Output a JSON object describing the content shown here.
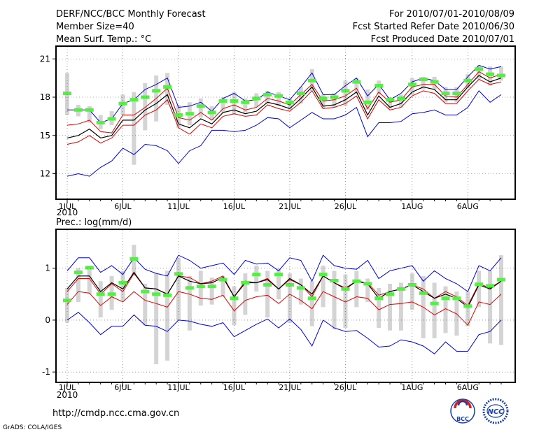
{
  "header": {
    "title": "DERF/NCC/BCC Monthly Forecast",
    "member_size": "Member Size=40",
    "variable_top": "Mean Surf. Temp.: °C",
    "fcst_period": "For 2010/07/01-2010/08/09",
    "fcst_started": "Fcst Started Refer Date 2010/06/30",
    "fcst_produced": "Fcst Produced Date 2010/07/01"
  },
  "footer": {
    "url": "http://cmdp.ncc.cma.gov.cn",
    "grads_credit": "GrADS: COLA/IGES",
    "logo_bcc_text": "BCC",
    "logo_ncc_text": "NCC"
  },
  "colors": {
    "ensemble_range": "#0000dd",
    "quartile_bounds": "#dd0000",
    "ensemble_mean": "#000000",
    "spread_bar": "#d4d4d4",
    "median_marker": "#55ee44",
    "frame": "#000000"
  },
  "chart_data": [
    {
      "type": "line",
      "title": "Mean Surf. Temp.: °C",
      "n_days": 40,
      "ylim": [
        10,
        22
      ],
      "yticks": [
        12,
        15,
        18,
        21
      ],
      "xtick_days": [
        1,
        6,
        11,
        16,
        21,
        26,
        32,
        37
      ],
      "xtick_labels": [
        "1JUL",
        "6JUL",
        "11JUL",
        "16JUL",
        "21JUL",
        "26JUL",
        "1AUG",
        "6AUG"
      ],
      "year_label": "2010",
      "series": [
        {
          "name": "max",
          "values": [
            17.0,
            17.0,
            17.0,
            16.0,
            16.3,
            17.5,
            17.8,
            18.6,
            19.0,
            19.5,
            17.2,
            17.3,
            17.6,
            16.9,
            17.9,
            18.3,
            17.7,
            17.8,
            18.4,
            18.1,
            17.8,
            18.8,
            19.9,
            18.2,
            18.2,
            18.9,
            19.5,
            18.1,
            19.0,
            17.8,
            18.3,
            19.2,
            19.5,
            19.3,
            18.6,
            18.6,
            19.6,
            20.5,
            20.2,
            20.4
          ]
        },
        {
          "name": "upper",
          "values": [
            15.8,
            15.9,
            16.2,
            15.3,
            15.2,
            16.6,
            16.6,
            17.2,
            17.9,
            18.7,
            16.4,
            16.2,
            16.8,
            16.2,
            17.1,
            17.4,
            17.0,
            17.2,
            17.9,
            17.7,
            17.4,
            18.2,
            19.0,
            17.7,
            17.8,
            18.1,
            18.7,
            17.1,
            18.4,
            17.6,
            17.8,
            18.8,
            19.0,
            19.0,
            18.1,
            18.0,
            19.0,
            20.0,
            19.5,
            19.8
          ]
        },
        {
          "name": "mean",
          "values": [
            14.8,
            15.0,
            15.5,
            14.8,
            15.0,
            16.2,
            16.2,
            17.0,
            17.5,
            18.2,
            15.9,
            15.6,
            16.3,
            15.9,
            16.8,
            17.0,
            16.7,
            16.9,
            17.6,
            17.4,
            17.1,
            17.9,
            18.8,
            17.3,
            17.4,
            17.8,
            18.4,
            16.6,
            18.1,
            17.2,
            17.5,
            18.4,
            18.8,
            18.6,
            17.8,
            17.8,
            18.8,
            19.7,
            19.2,
            19.5
          ]
        },
        {
          "name": "lower",
          "values": [
            14.3,
            14.5,
            15.0,
            14.4,
            14.8,
            15.8,
            15.8,
            16.6,
            17.0,
            17.8,
            15.6,
            15.1,
            15.9,
            15.6,
            16.5,
            16.7,
            16.5,
            16.6,
            17.4,
            17.1,
            16.9,
            17.6,
            18.5,
            17.1,
            17.2,
            17.5,
            18.1,
            16.3,
            17.8,
            17.0,
            17.2,
            18.1,
            18.5,
            18.3,
            17.5,
            17.5,
            18.5,
            19.4,
            19.0,
            19.2
          ]
        },
        {
          "name": "min",
          "values": [
            11.8,
            12.0,
            11.8,
            12.5,
            13.0,
            14.0,
            13.5,
            14.3,
            14.2,
            13.8,
            12.8,
            13.8,
            14.2,
            15.4,
            15.4,
            15.3,
            15.4,
            15.8,
            16.4,
            16.3,
            15.6,
            16.2,
            16.8,
            16.3,
            16.3,
            16.6,
            17.2,
            14.9,
            16.0,
            16.0,
            16.1,
            16.7,
            16.8,
            17.0,
            16.6,
            16.6,
            17.2,
            18.5,
            17.6,
            18.2
          ]
        },
        {
          "name": "median",
          "values": [
            18.3,
            17.0,
            17.0,
            16.0,
            16.3,
            17.5,
            17.8,
            18.0,
            18.5,
            18.8,
            16.6,
            16.7,
            17.3,
            16.8,
            17.7,
            17.7,
            17.6,
            17.9,
            18.2,
            18.1,
            17.6,
            18.3,
            19.3,
            17.9,
            18.0,
            18.5,
            19.2,
            17.6,
            18.9,
            17.8,
            17.9,
            19.0,
            19.4,
            19.2,
            18.3,
            18.3,
            19.3,
            20.2,
            19.8,
            19.7
          ]
        },
        {
          "name": "spread_top",
          "values": [
            19.9,
            17.4,
            17.3,
            16.6,
            16.9,
            18.2,
            18.4,
            19.1,
            19.7,
            19.9,
            17.4,
            17.6,
            17.9,
            17.3,
            18.0,
            18.4,
            17.9,
            18.3,
            18.5,
            18.4,
            17.9,
            18.8,
            20.2,
            18.2,
            18.3,
            19.3,
            19.5,
            18.6,
            19.3,
            18.0,
            18.2,
            19.5,
            19.6,
            19.6,
            18.8,
            18.8,
            19.8,
            20.5,
            20.4,
            20.4
          ]
        },
        {
          "name": "spread_bottom",
          "values": [
            16.6,
            16.5,
            16.0,
            15.5,
            15.8,
            16.6,
            12.7,
            15.4,
            16.1,
            17.4,
            15.6,
            15.8,
            16.4,
            16.2,
            16.8,
            16.6,
            16.8,
            17.2,
            17.5,
            17.3,
            17.0,
            17.5,
            18.5,
            17.1,
            17.2,
            17.3,
            18.3,
            17.0,
            18.2,
            17.1,
            17.2,
            18.2,
            18.6,
            18.6,
            17.6,
            17.6,
            18.7,
            19.4,
            18.9,
            19.3
          ]
        }
      ]
    },
    {
      "type": "line",
      "title": "Prec.: log(mm/d)",
      "n_days": 40,
      "ylim": [
        -1.2,
        1.75
      ],
      "yticks": [
        -1,
        0,
        1
      ],
      "xtick_days": [
        1,
        6,
        11,
        16,
        21,
        26,
        32,
        37
      ],
      "xtick_labels": [
        "1JUL",
        "6JUL",
        "11JUL",
        "16JUL",
        "21JUL",
        "26JUL",
        "1AUG",
        "6AUG"
      ],
      "year_label": "2010",
      "series": [
        {
          "name": "max",
          "values": [
            0.95,
            1.2,
            1.2,
            0.92,
            1.05,
            0.88,
            1.2,
            0.98,
            0.9,
            0.85,
            1.25,
            1.15,
            1.0,
            1.05,
            1.1,
            0.88,
            1.15,
            1.08,
            1.1,
            0.95,
            1.2,
            1.15,
            0.75,
            1.25,
            1.05,
            1.0,
            0.98,
            1.15,
            0.8,
            0.95,
            1.0,
            1.05,
            0.75,
            0.95,
            0.8,
            0.7,
            0.55,
            1.05,
            0.95,
            1.2
          ]
        },
        {
          "name": "upper",
          "values": [
            0.55,
            0.8,
            0.8,
            0.5,
            0.7,
            0.55,
            0.9,
            0.62,
            0.6,
            0.5,
            0.85,
            0.82,
            0.7,
            0.75,
            0.85,
            0.45,
            0.75,
            0.72,
            0.8,
            0.6,
            0.78,
            0.68,
            0.45,
            0.85,
            0.72,
            0.62,
            0.75,
            0.72,
            0.48,
            0.55,
            0.6,
            0.68,
            0.6,
            0.42,
            0.55,
            0.45,
            0.28,
            0.7,
            0.62,
            0.75
          ]
        },
        {
          "name": "mean",
          "values": [
            0.6,
            0.85,
            0.85,
            0.55,
            0.72,
            0.6,
            0.92,
            0.62,
            0.6,
            0.5,
            0.85,
            0.75,
            0.7,
            0.72,
            0.82,
            0.45,
            0.72,
            0.72,
            0.78,
            0.6,
            0.8,
            0.68,
            0.5,
            0.85,
            0.72,
            0.6,
            0.75,
            0.7,
            0.42,
            0.55,
            0.6,
            0.68,
            0.55,
            0.42,
            0.5,
            0.42,
            0.25,
            0.68,
            0.6,
            0.75
          ]
        },
        {
          "name": "lower",
          "values": [
            0.3,
            0.55,
            0.52,
            0.28,
            0.45,
            0.35,
            0.55,
            0.38,
            0.32,
            0.25,
            0.55,
            0.5,
            0.42,
            0.4,
            0.48,
            0.18,
            0.38,
            0.45,
            0.48,
            0.32,
            0.5,
            0.38,
            0.22,
            0.55,
            0.45,
            0.35,
            0.45,
            0.42,
            0.2,
            0.3,
            0.32,
            0.35,
            0.25,
            0.1,
            0.22,
            0.12,
            -0.1,
            0.35,
            0.3,
            0.5
          ]
        },
        {
          "name": "min",
          "values": [
            0.0,
            0.15,
            -0.05,
            -0.28,
            -0.12,
            -0.12,
            0.1,
            -0.1,
            -0.12,
            -0.22,
            0.0,
            -0.02,
            -0.08,
            -0.12,
            -0.05,
            -0.32,
            -0.2,
            -0.08,
            0.02,
            -0.15,
            0.02,
            -0.18,
            -0.5,
            0.0,
            -0.15,
            -0.22,
            -0.2,
            -0.35,
            -0.52,
            -0.5,
            -0.38,
            -0.42,
            -0.5,
            -0.65,
            -0.42,
            -0.6,
            -0.6,
            -0.28,
            -0.22,
            0.0
          ]
        },
        {
          "name": "median",
          "values": [
            0.38,
            0.92,
            1.01,
            0.5,
            0.5,
            0.72,
            1.18,
            0.55,
            0.5,
            0.48,
            0.89,
            0.62,
            0.65,
            0.65,
            0.78,
            0.42,
            0.72,
            0.88,
            0.68,
            0.88,
            0.68,
            0.62,
            0.42,
            0.88,
            0.76,
            0.6,
            0.75,
            0.7,
            0.42,
            0.5,
            0.6,
            0.68,
            0.52,
            0.32,
            0.42,
            0.42,
            0.27,
            0.69,
            0.66,
            0.78
          ]
        },
        {
          "name": "spread_top",
          "values": [
            0.62,
            1.0,
            1.05,
            0.75,
            0.85,
            0.95,
            1.45,
            0.7,
            0.9,
            0.95,
            1.2,
            0.85,
            0.95,
            0.82,
            0.85,
            0.65,
            0.9,
            1.05,
            0.95,
            1.0,
            0.9,
            0.8,
            0.75,
            1.05,
            0.95,
            0.88,
            0.95,
            0.8,
            0.62,
            0.7,
            0.72,
            0.9,
            0.85,
            0.72,
            0.65,
            0.55,
            0.55,
            0.95,
            0.95,
            1.25
          ]
        },
        {
          "name": "spread_bottom",
          "values": [
            -0.05,
            0.35,
            0.5,
            0.05,
            0.2,
            0.38,
            0.85,
            -0.1,
            -0.85,
            -0.78,
            0.0,
            -0.2,
            0.28,
            0.3,
            0.45,
            -0.1,
            0.1,
            0.55,
            0.05,
            0.4,
            -0.05,
            0.3,
            -0.12,
            0.25,
            -0.18,
            -0.15,
            0.25,
            0.35,
            -0.15,
            -0.2,
            -0.2,
            0.2,
            -0.35,
            -0.35,
            -0.25,
            -0.3,
            -0.12,
            0.25,
            -0.45,
            -0.48
          ]
        }
      ]
    }
  ]
}
